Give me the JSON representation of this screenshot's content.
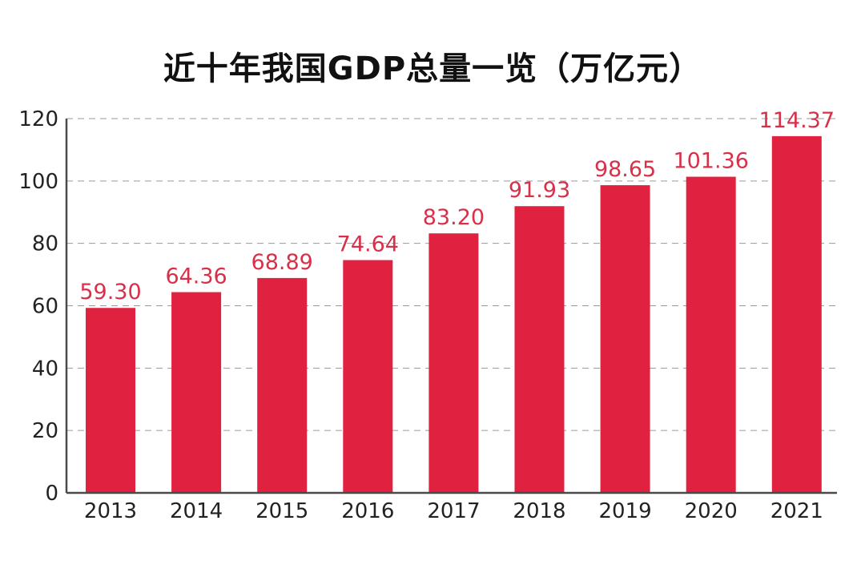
{
  "chart_data": {
    "type": "bar",
    "title": "近十年我国GDP总量一览（万亿元）",
    "xlabel": "",
    "ylabel": "",
    "categories": [
      "2013",
      "2014",
      "2015",
      "2016",
      "2017",
      "2018",
      "2019",
      "2020",
      "2021"
    ],
    "values": [
      59.3,
      64.36,
      68.89,
      74.64,
      83.2,
      91.93,
      98.65,
      101.36,
      114.37
    ],
    "value_labels": [
      "59.30",
      "64.36",
      "68.89",
      "74.64",
      "83.20",
      "91.93",
      "98.65",
      "101.36",
      "114.37"
    ],
    "ylim": [
      0,
      120
    ],
    "yticks": [
      "0",
      "20",
      "40",
      "60",
      "80",
      "100",
      "120"
    ],
    "grid": true,
    "legend": "none",
    "colors": {
      "bar": "#e0213f",
      "label": "#d9304a",
      "grid": "#9a9a9a",
      "axis": "#4a4a4a"
    }
  }
}
